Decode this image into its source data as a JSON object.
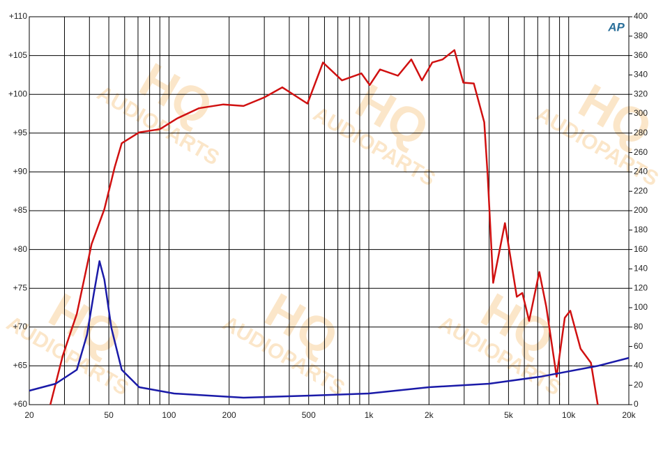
{
  "chart_data": {
    "type": "line",
    "x_scale": "log",
    "xlim": [
      20,
      20000
    ],
    "xticks": [
      20,
      50,
      100,
      200,
      500,
      {
        "value": 1000,
        "label": "1k"
      },
      {
        "value": 2000,
        "label": "2k"
      },
      {
        "value": 5000,
        "label": "5k"
      },
      {
        "value": 10000,
        "label": "10k"
      },
      {
        "value": 20000,
        "label": "20k"
      }
    ],
    "xgrid": [
      20,
      30,
      40,
      50,
      60,
      70,
      80,
      90,
      100,
      200,
      300,
      400,
      500,
      600,
      700,
      800,
      900,
      1000,
      2000,
      3000,
      4000,
      5000,
      6000,
      7000,
      8000,
      9000,
      10000,
      20000
    ],
    "ylim": [
      60,
      110
    ],
    "yticks": [
      {
        "value": 60,
        "label": "+60"
      },
      {
        "value": 65,
        "label": "+65"
      },
      {
        "value": 70,
        "label": "+70"
      },
      {
        "value": 75,
        "label": "+75"
      },
      {
        "value": 80,
        "label": "+80"
      },
      {
        "value": 85,
        "label": "+85"
      },
      {
        "value": 90,
        "label": "+90"
      },
      {
        "value": 95,
        "label": "+95"
      },
      {
        "value": 100,
        "label": "+100"
      },
      {
        "value": 105,
        "label": "+105"
      },
      {
        "value": 110,
        "label": "+110"
      }
    ],
    "y2lim": [
      0,
      400
    ],
    "y2ticks": [
      0,
      20,
      40,
      60,
      80,
      100,
      120,
      140,
      160,
      180,
      200,
      220,
      240,
      260,
      280,
      300,
      320,
      340,
      360,
      380,
      400
    ],
    "grid": true,
    "logo": "AP",
    "watermark": [
      "HQ",
      "AUDIOPARTS"
    ],
    "series": [
      {
        "color": "#d01010",
        "x": [
          25.5,
          29.4,
          34.6,
          41,
          47.5,
          53.5,
          58,
          71,
          90,
          110,
          141,
          187,
          236,
          300,
          369,
          493,
          590,
          734,
          918,
          1010,
          1138,
          1398,
          1632,
          1843,
          2077,
          2340,
          2680,
          2970,
          3350,
          3780,
          3930,
          4190,
          4800,
          5500,
          5860,
          6340,
          7130,
          7730,
          8700,
          9560,
          10190,
          11470,
          12920,
          13980
        ],
        "values": [
          60,
          66.3,
          71.7,
          80.7,
          85.2,
          90.6,
          93.7,
          95.1,
          95.5,
          96.9,
          98.2,
          98.7,
          98.5,
          99.6,
          100.9,
          98.8,
          104.1,
          101.8,
          102.7,
          101.2,
          103.2,
          102.4,
          104.5,
          101.8,
          104.1,
          104.5,
          105.7,
          101.5,
          101.4,
          96.4,
          89.7,
          75.7,
          83.4,
          73.9,
          74.4,
          70.8,
          77.1,
          72.6,
          63.6,
          71.2,
          72.1,
          67.2,
          65.4,
          60
        ]
      },
      {
        "color": "#1a1aa8",
        "axis": "y2",
        "x": [
          20,
          27.1,
          34.6,
          38.9,
          42.1,
          44.9,
          47.5,
          51.5,
          58,
          71,
          106,
          236,
          528,
          1000,
          2000,
          4000,
          7300,
          14000,
          20000
        ],
        "values": [
          14.4,
          21.6,
          36,
          72,
          115,
          148,
          129,
          79,
          36,
          18,
          11.5,
          7.2,
          9.4,
          11.5,
          18,
          21.6,
          29,
          40,
          48.2
        ]
      }
    ]
  }
}
